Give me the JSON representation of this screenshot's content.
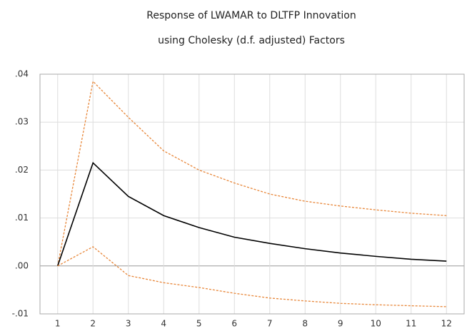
{
  "chart_data": {
    "type": "line",
    "title": "Response of LWAMAR to DLTFP Innovation",
    "subtitle": "using Cholesky (d.f. adjusted) Factors",
    "categories": [
      "1",
      "2",
      "3",
      "4",
      "5",
      "6",
      "7",
      "8",
      "9",
      "10",
      "11",
      "12"
    ],
    "series": [
      {
        "color": "#e8873a",
        "dashed": true,
        "values": [
          0,
          0.0385,
          0.031,
          0.024,
          0.02,
          0.0173,
          0.015,
          0.0135,
          0.0125,
          0.0117,
          0.011,
          0.0105
        ]
      },
      {
        "color": "#000000",
        "dashed": false,
        "values": [
          0,
          0.0215,
          0.0145,
          0.0105,
          0.008,
          0.006,
          0.0047,
          0.0036,
          0.0027,
          0.002,
          0.0014,
          0.001
        ]
      },
      {
        "color": "#e8873a",
        "dashed": true,
        "values": [
          0,
          0.004,
          -0.002,
          -0.0035,
          -0.0045,
          -0.0057,
          -0.0067,
          -0.0073,
          -0.0078,
          -0.0081,
          -0.0083,
          -0.0085
        ]
      }
    ],
    "ylim": [
      -0.01,
      0.04
    ],
    "yticks": [
      {
        "value": -0.01,
        "label": "-.01"
      },
      {
        "value": 0,
        "label": ".00"
      },
      {
        "value": 0.01,
        "label": ".01"
      },
      {
        "value": 0.02,
        "label": ".02"
      },
      {
        "value": 0.03,
        "label": ".03"
      },
      {
        "value": 0.04,
        "label": ".04"
      }
    ],
    "grid": true
  }
}
